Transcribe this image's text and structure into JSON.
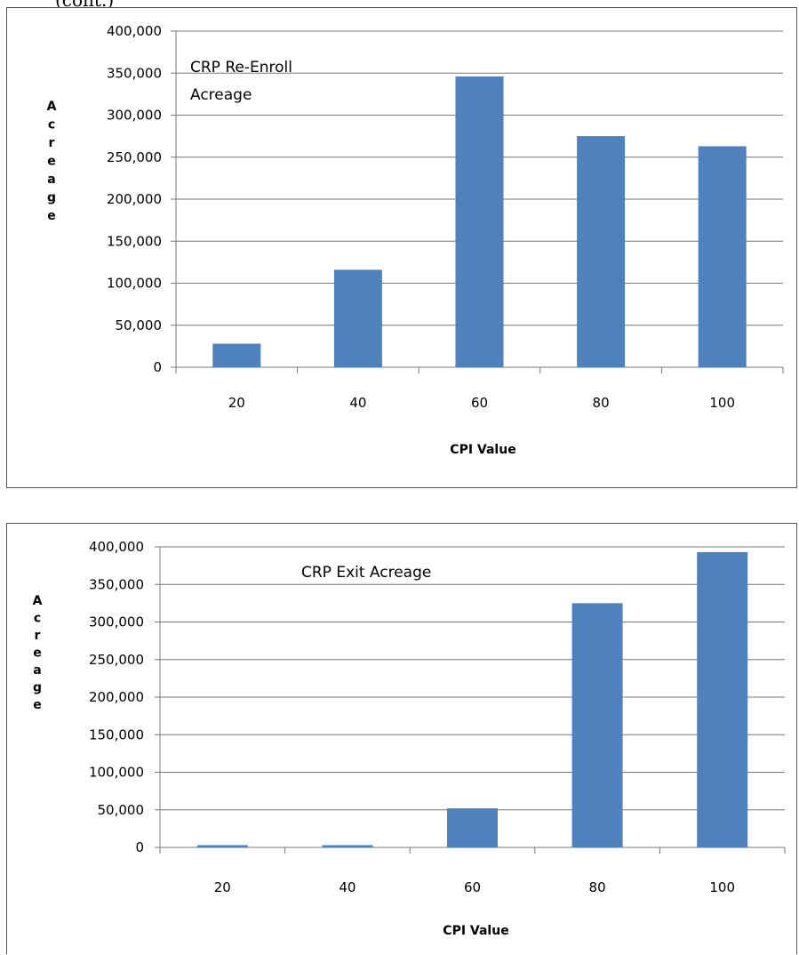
{
  "chart_data": [
    {
      "type": "bar",
      "annotation_lines": [
        "CRP Re-Enroll",
        "Acreage"
      ],
      "xlabel": "CPI Value",
      "ylabel": "Acreage",
      "categories": [
        "20",
        "40",
        "60",
        "80",
        "100"
      ],
      "values": [
        28000,
        116000,
        346000,
        275000,
        263000
      ],
      "ylim": [
        0,
        400000
      ],
      "yticks": [
        "0",
        "50,000",
        "100,000",
        "150,000",
        "200,000",
        "250,000",
        "300,000",
        "350,000",
        "400,000"
      ],
      "grid": true,
      "bar_color": "#4F81BD"
    },
    {
      "type": "bar",
      "annotation_lines": [
        "CRP Exit Acreage"
      ],
      "xlabel": "CPI Value",
      "ylabel": "Acreage",
      "categories": [
        "20",
        "40",
        "60",
        "80",
        "100"
      ],
      "values": [
        3000,
        3000,
        52000,
        325000,
        393000
      ],
      "ylim": [
        0,
        400000
      ],
      "yticks": [
        "0",
        "50,000",
        "100,000",
        "150,000",
        "200,000",
        "250,000",
        "300,000",
        "350,000",
        "400,000"
      ],
      "grid": true,
      "bar_color": "#4F81BD"
    }
  ]
}
